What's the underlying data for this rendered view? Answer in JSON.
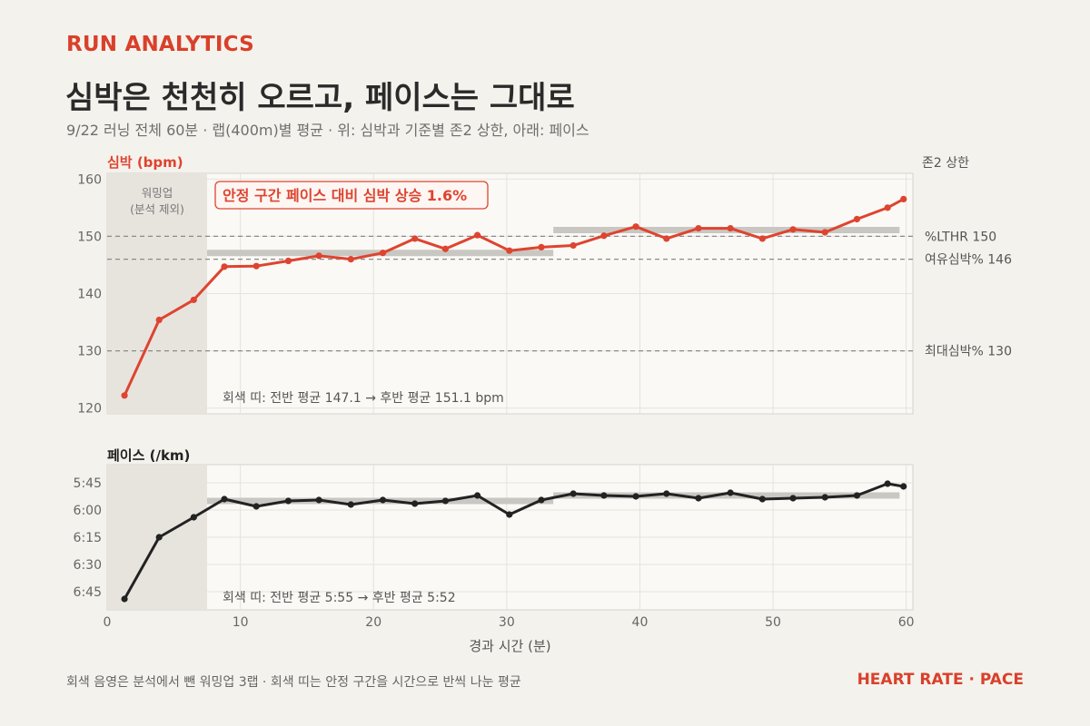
{
  "header": {
    "brand": "RUN ANALYTICS",
    "title": "심박은 천천히 오르고, 페이스는 그대로",
    "subtitle": "9/22 러닝 전체 60분 · 랩(400m)별 평균 · 위: 심박과 기준별 존2 상한, 아래: 페이스"
  },
  "footer": {
    "note": "회색 음영은 분석에서 뺀 워밍업 3랩 · 회색 띠는 안정 구간을 시간으로 반씩 나눈 평균",
    "brand": "HEART RATE · PACE"
  },
  "colors": {
    "heart_rate": "#de4430",
    "pace": "#222222",
    "band": "#c9c7c2",
    "warmup": "#e7e4de",
    "reference": "#8a8a8a"
  },
  "chart_data": [
    {
      "type": "line",
      "ylabel": "심박 (bpm)",
      "right_label": "존2 상한",
      "ylim": [
        119,
        161
      ],
      "yticks": [
        120,
        130,
        140,
        150,
        160
      ],
      "xlim": [
        0,
        60.5
      ],
      "grid": true,
      "warmup": {
        "x_end": 7.5,
        "label_lines": [
          "워밍업",
          "(분석 제외)"
        ]
      },
      "references": [
        {
          "value": 150,
          "label": "%LTHR  150"
        },
        {
          "value": 146,
          "label": "여유심박%  146"
        },
        {
          "value": 130,
          "label": "최대심박%  130"
        }
      ],
      "bands": [
        {
          "x_start": 7.5,
          "x_end": 33.5,
          "value": 147.1
        },
        {
          "x_start": 33.5,
          "x_end": 59.5,
          "value": 151.1
        }
      ],
      "callout": "안정 구간 페이스 대비 심박 상승 1.6%",
      "annotation": "회색 띠: 전반 평균 147.1 → 후반 평균 151.1 bpm",
      "series": [
        {
          "x": [
            1.3,
            3.9,
            6.5,
            8.8,
            11.2,
            13.6,
            15.9,
            18.3,
            20.7,
            23.1,
            25.4,
            27.8,
            30.2,
            32.6,
            35.0,
            37.3,
            39.7,
            42.0,
            44.4,
            46.8,
            49.2,
            51.5,
            53.9,
            56.3,
            58.6,
            59.8
          ],
          "values": [
            122.2,
            135.4,
            138.9,
            144.7,
            144.8,
            145.7,
            146.6,
            146.0,
            147.1,
            149.6,
            147.8,
            150.2,
            147.5,
            148.1,
            148.4,
            150.1,
            151.7,
            149.6,
            151.4,
            151.4,
            149.6,
            151.2,
            150.7,
            153.0,
            155.0,
            156.5
          ]
        }
      ]
    },
    {
      "type": "line",
      "ylabel": "페이스 (/km)",
      "xlabel": "경과 시간 (분)",
      "xticks": [
        0,
        10,
        20,
        30,
        40,
        50,
        60
      ],
      "xlim": [
        0,
        60.5
      ],
      "ylim_seconds": [
        335,
        415
      ],
      "yticks": [
        {
          "seconds": 345,
          "label": "5:45"
        },
        {
          "seconds": 360,
          "label": "6:00"
        },
        {
          "seconds": 375,
          "label": "6:15"
        },
        {
          "seconds": 390,
          "label": "6:30"
        },
        {
          "seconds": 405,
          "label": "6:45"
        }
      ],
      "grid": true,
      "warmup": {
        "x_end": 7.5
      },
      "bands": [
        {
          "x_start": 7.5,
          "x_end": 33.5,
          "value_seconds": 355
        },
        {
          "x_start": 33.5,
          "x_end": 59.5,
          "value_seconds": 352
        }
      ],
      "annotation": "회색 띠: 전반 평균 5:55 → 후반 평균 5:52",
      "series": [
        {
          "x": [
            1.3,
            3.9,
            6.5,
            8.8,
            11.2,
            13.6,
            15.9,
            18.3,
            20.7,
            23.1,
            25.4,
            27.8,
            30.2,
            32.6,
            35.0,
            37.3,
            39.7,
            42.0,
            44.4,
            46.8,
            49.2,
            51.5,
            53.9,
            56.3,
            58.6,
            59.8
          ],
          "values_seconds": [
            409,
            375,
            364,
            354,
            358,
            355,
            354.5,
            357,
            354.5,
            356.5,
            355,
            352,
            362.5,
            354.5,
            351,
            352,
            352.5,
            351,
            353.5,
            350.5,
            354,
            353.5,
            353,
            352,
            345.5,
            347
          ]
        }
      ]
    }
  ]
}
